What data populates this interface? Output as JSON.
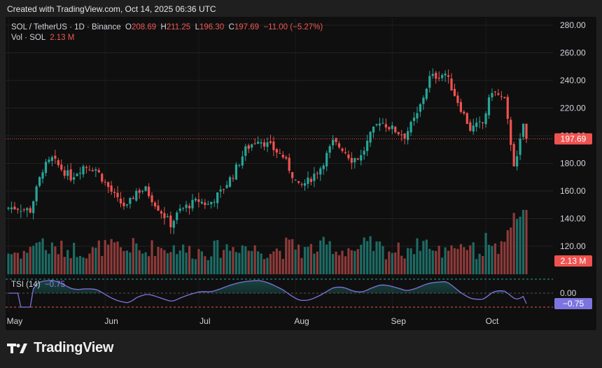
{
  "header": {
    "created": "Created with TradingView.com, Oct 14, 2025 06:36 UTC"
  },
  "legend": {
    "symbol": "SOL / TetherUS · 1D · Binance",
    "open_label": "O",
    "open": "208.69",
    "high_label": "H",
    "high": "211.25",
    "low_label": "L",
    "low": "196.30",
    "close_label": "C",
    "close": "197.69",
    "change": "−11.00 (−5.27%)",
    "vol_label": "Vol · SOL",
    "vol_value": "2.13 M",
    "tsi_label": "TSI (14)",
    "tsi_value": "−0.75"
  },
  "badges": {
    "price": "197.69",
    "volume": "2.13 M",
    "tsi": "−0.75",
    "tsi_zero": "0.00"
  },
  "brand": {
    "name": "TradingView"
  },
  "colors": {
    "up": "#26a69a",
    "down": "#ef5350",
    "tsi": "#7e74e0",
    "background": "#0f0f0f"
  },
  "chart_data": {
    "type": "candlestick",
    "price_axis_ticks": [
      120,
      140,
      160,
      180,
      200,
      220,
      240,
      260,
      280
    ],
    "ylim": [
      110,
      285
    ],
    "x_month_labels": [
      "May",
      "Jun",
      "Jul",
      "Aug",
      "Sep",
      "Oct"
    ],
    "current_price": 197.69,
    "close_path": [
      {
        "d": "2025-05-01",
        "c": 148
      },
      {
        "d": "2025-05-04",
        "c": 148
      },
      {
        "d": "2025-05-08",
        "c": 146
      },
      {
        "d": "2025-05-12",
        "c": 176
      },
      {
        "d": "2025-05-15",
        "c": 183
      },
      {
        "d": "2025-05-18",
        "c": 176
      },
      {
        "d": "2025-05-21",
        "c": 170
      },
      {
        "d": "2025-05-25",
        "c": 178
      },
      {
        "d": "2025-05-29",
        "c": 176
      },
      {
        "d": "2025-06-01",
        "c": 166
      },
      {
        "d": "2025-06-05",
        "c": 153
      },
      {
        "d": "2025-06-08",
        "c": 148
      },
      {
        "d": "2025-06-11",
        "c": 160
      },
      {
        "d": "2025-06-14",
        "c": 161
      },
      {
        "d": "2025-06-18",
        "c": 148
      },
      {
        "d": "2025-06-22",
        "c": 136
      },
      {
        "d": "2025-06-25",
        "c": 146
      },
      {
        "d": "2025-06-28",
        "c": 150
      },
      {
        "d": "2025-07-01",
        "c": 153
      },
      {
        "d": "2025-07-04",
        "c": 150
      },
      {
        "d": "2025-07-08",
        "c": 159
      },
      {
        "d": "2025-07-12",
        "c": 172
      },
      {
        "d": "2025-07-16",
        "c": 190
      },
      {
        "d": "2025-07-20",
        "c": 198
      },
      {
        "d": "2025-07-24",
        "c": 192
      },
      {
        "d": "2025-07-28",
        "c": 185
      },
      {
        "d": "2025-08-02",
        "c": 163
      },
      {
        "d": "2025-08-05",
        "c": 167
      },
      {
        "d": "2025-08-09",
        "c": 177
      },
      {
        "d": "2025-08-13",
        "c": 195
      },
      {
        "d": "2025-08-16",
        "c": 191
      },
      {
        "d": "2025-08-19",
        "c": 183
      },
      {
        "d": "2025-08-22",
        "c": 185
      },
      {
        "d": "2025-08-25",
        "c": 200
      },
      {
        "d": "2025-08-28",
        "c": 211
      },
      {
        "d": "2025-09-01",
        "c": 205
      },
      {
        "d": "2025-09-05",
        "c": 200
      },
      {
        "d": "2025-09-09",
        "c": 215
      },
      {
        "d": "2025-09-13",
        "c": 242
      },
      {
        "d": "2025-09-18",
        "c": 245
      },
      {
        "d": "2025-09-22",
        "c": 225
      },
      {
        "d": "2025-09-26",
        "c": 205
      },
      {
        "d": "2025-09-30",
        "c": 209
      },
      {
        "d": "2025-10-03",
        "c": 233
      },
      {
        "d": "2025-10-07",
        "c": 225
      },
      {
        "d": "2025-10-10",
        "c": 180
      },
      {
        "d": "2025-10-11",
        "c": 183
      },
      {
        "d": "2025-10-13",
        "c": 208.69
      },
      {
        "d": "2025-10-14",
        "c": 197.69
      }
    ],
    "volume_unit": "M SOL",
    "tsi": {
      "period": 14,
      "last": -0.75,
      "range": [
        -1,
        1
      ]
    }
  }
}
